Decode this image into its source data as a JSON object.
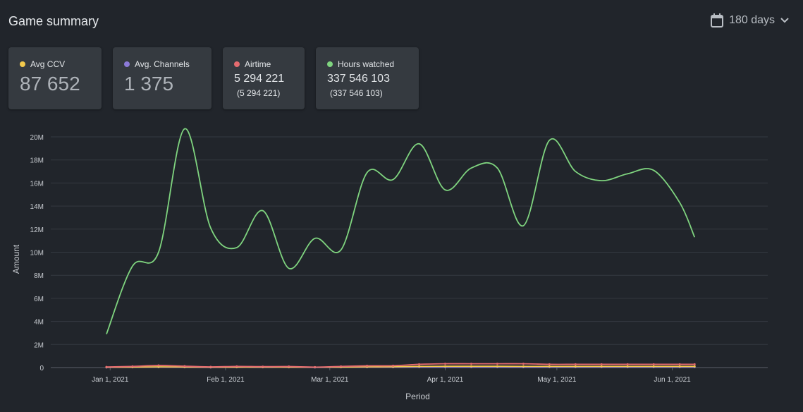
{
  "header": {
    "title": "Game summary",
    "period_label": "180 days"
  },
  "icons": {
    "calendar": "calendar-icon",
    "chevron": "chevron-down-icon"
  },
  "cards": [
    {
      "label": "Avg CCV",
      "color": "#f2c94c",
      "value": "87 652",
      "sub": ""
    },
    {
      "label": "Avg. Channels",
      "color": "#8c7ad8",
      "value": "1 375",
      "sub": ""
    },
    {
      "label": "Airtime",
      "color": "#e56b6f",
      "value": "5 294 221",
      "sub": "(5 294 221)"
    },
    {
      "label": "Hours watched",
      "color": "#7fd47f",
      "value": "337 546 103",
      "sub": "(337 546 103)"
    }
  ],
  "chart_data": {
    "type": "line",
    "xlabel": "Period",
    "ylabel": "Amount",
    "ylim": [
      0,
      20000000
    ],
    "y_ticks": [
      "0",
      "2M",
      "4M",
      "6M",
      "8M",
      "10M",
      "12M",
      "14M",
      "16M",
      "18M",
      "20M"
    ],
    "x_ticks": [
      "Jan 1, 2021",
      "Feb 1, 2021",
      "Mar 1, 2021",
      "Apr 1, 2021",
      "May 1, 2021",
      "Jun 1, 2021"
    ],
    "x": [
      "2020-12-31",
      "2021-01-07",
      "2021-01-14",
      "2021-01-21",
      "2021-01-28",
      "2021-02-04",
      "2021-02-11",
      "2021-02-18",
      "2021-02-25",
      "2021-03-04",
      "2021-03-11",
      "2021-03-18",
      "2021-03-25",
      "2021-04-01",
      "2021-04-08",
      "2021-04-15",
      "2021-04-22",
      "2021-04-29",
      "2021-05-06",
      "2021-05-13",
      "2021-05-20",
      "2021-05-27",
      "2021-06-03",
      "2021-06-07"
    ],
    "series": [
      {
        "name": "Hours watched",
        "color": "#7fd47f",
        "values": [
          2900000,
          8800000,
          10000000,
          20700000,
          12100000,
          10400000,
          13600000,
          8600000,
          11200000,
          10200000,
          16900000,
          16300000,
          19400000,
          15400000,
          17300000,
          17300000,
          12300000,
          19700000,
          17000000,
          16200000,
          16800000,
          17100000,
          14300000,
          11300000
        ]
      },
      {
        "name": "Airtime",
        "color": "#e56b6f",
        "values": [
          50000,
          100000,
          180000,
          120000,
          60000,
          100000,
          80000,
          90000,
          40000,
          100000,
          150000,
          160000,
          280000,
          330000,
          330000,
          330000,
          330000,
          280000,
          280000,
          280000,
          280000,
          280000,
          280000,
          280000
        ]
      },
      {
        "name": "Avg CCV",
        "color": "#f2c94c",
        "values": [
          30000,
          40000,
          60000,
          50000,
          30000,
          40000,
          40000,
          40000,
          30000,
          40000,
          60000,
          70000,
          100000,
          110000,
          110000,
          110000,
          100000,
          100000,
          100000,
          100000,
          100000,
          100000,
          100000,
          100000
        ]
      },
      {
        "name": "Avg. Channels",
        "color": "#8c7ad8",
        "values": [
          10000,
          20000,
          30000,
          20000,
          10000,
          20000,
          20000,
          20000,
          10000,
          20000,
          30000,
          30000,
          40000,
          40000,
          40000,
          40000,
          30000,
          40000,
          40000,
          40000,
          40000,
          40000,
          40000,
          40000
        ]
      }
    ],
    "grid": true,
    "legend": "none"
  }
}
